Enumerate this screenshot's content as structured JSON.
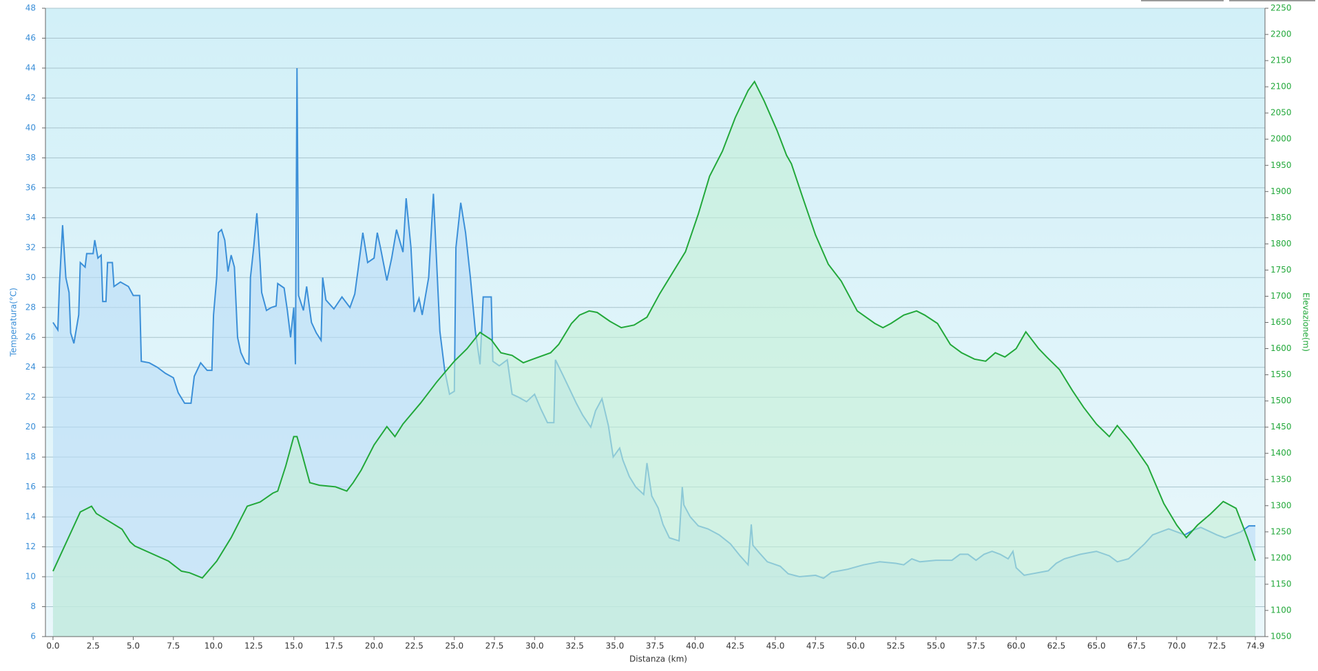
{
  "chart_data": {
    "type": "line",
    "xlabel": "Distanza  (km)",
    "ylabel": "Temperatura(°C)",
    "y2label": "Elevazione(m)",
    "xlim": [
      -0.47,
      75.5
    ],
    "ylim": [
      6,
      48
    ],
    "y2lim": [
      1050,
      2250
    ],
    "grid": true,
    "xticks": [
      {
        "value": 0,
        "label": "0.0"
      },
      2.5,
      {
        "value": 5,
        "label": "5.0"
      },
      7.5,
      {
        "value": 10,
        "label": "10.0"
      },
      12.5,
      {
        "value": 15,
        "label": "15.0"
      },
      17.5,
      {
        "value": 20,
        "label": "20.0"
      },
      22.5,
      {
        "value": 25,
        "label": "25.0"
      },
      27.5,
      {
        "value": 30,
        "label": "30.0"
      },
      32.5,
      {
        "value": 35,
        "label": "35.0"
      },
      37.5,
      {
        "value": 40,
        "label": "40.0"
      },
      42.5,
      {
        "value": 45,
        "label": "45.0"
      },
      47.5,
      {
        "value": 50,
        "label": "50.0"
      },
      52.5,
      {
        "value": 55,
        "label": "55.0"
      },
      57.5,
      {
        "value": 60,
        "label": "60.0"
      },
      62.5,
      {
        "value": 65,
        "label": "65.0"
      },
      67.5,
      {
        "value": 70,
        "label": "70.0"
      },
      72.5,
      74.9
    ],
    "yticks": [
      6,
      8,
      10,
      12,
      14,
      16,
      18,
      20,
      22,
      24,
      26,
      28,
      30,
      32,
      34,
      36,
      38,
      40,
      42,
      44,
      46,
      48
    ],
    "y2ticks": [
      1050,
      1100,
      1150,
      1200,
      1250,
      1300,
      1350,
      1400,
      1450,
      1500,
      1550,
      1600,
      1650,
      1700,
      1750,
      1800,
      1850,
      1900,
      1950,
      2000,
      2050,
      2100,
      2150,
      2200,
      2250
    ],
    "series": [
      {
        "name": "Temperatura",
        "color": "#3b8fd8",
        "fill": "#b9dcf6",
        "x": [
          0,
          0.3,
          0.4,
          0.6,
          0.8,
          1,
          1.1,
          1.3,
          1.6,
          1.7,
          2.0,
          2.1,
          2.5,
          2.6,
          2.8,
          3.0,
          3.1,
          3.3,
          3.4,
          3.7,
          3.8,
          4.2,
          4.7,
          5.0,
          5.4,
          5.5,
          6.0,
          6.5,
          7.0,
          7.5,
          7.8,
          8.2,
          8.6,
          8.8,
          9.2,
          9.6,
          9.9,
          10.0,
          10.2,
          10.3,
          10.5,
          10.7,
          10.9,
          11.1,
          11.3,
          11.5,
          11.7,
          12.0,
          12.2,
          12.3,
          12.5,
          12.7,
          12.9,
          13.0,
          13.3,
          13.6,
          13.9,
          14.0,
          14.4,
          14.6,
          14.8,
          15.0,
          15.1,
          15.2,
          15.3,
          15.6,
          15.8,
          16.1,
          16.4,
          16.7,
          16.8,
          17.0,
          17.5,
          18.0,
          18.5,
          18.8,
          19.0,
          19.3,
          19.6,
          20.0,
          20.2,
          20.4,
          20.8,
          21.1,
          21.4,
          21.8,
          22.0,
          22.3,
          22.5,
          22.8,
          23.0,
          23.4,
          23.7,
          23.9,
          24.1,
          24.4,
          24.7,
          25.0,
          25.1,
          25.4,
          25.7,
          26.0,
          26.3,
          26.6,
          26.8,
          27.3,
          27.4,
          27.8,
          28.3,
          28.6,
          29.0,
          29.5,
          30.0,
          30.4,
          30.8,
          31.2,
          31.3,
          31.8,
          32.2,
          32.6,
          33.0,
          33.5,
          33.8,
          34.2,
          34.6,
          34.9,
          35.3,
          35.5,
          35.9,
          36.3,
          36.8,
          37.0,
          37.3,
          37.7,
          38.0,
          38.4,
          39.0,
          39.2,
          39.3,
          39.7,
          40.2,
          40.8,
          41.5,
          42.2,
          42.8,
          43.3,
          43.5,
          43.6,
          44.0,
          44.5,
          45.3,
          45.8,
          46.5,
          47.5,
          48.0,
          48.5,
          49.5,
          50.5,
          51.5,
          52.5,
          53.0,
          53.5,
          54.0,
          55.0,
          56.0,
          56.5,
          57.0,
          57.5,
          58.0,
          58.5,
          59.0,
          59.5,
          59.8,
          60.0,
          60.5,
          61.0,
          62.0,
          62.5,
          63.0,
          64.0,
          65.0,
          65.8,
          66.3,
          67.0,
          67.5,
          68.0,
          68.5,
          69.5,
          70.5,
          71.0,
          71.5,
          72.5,
          73.0,
          74.0,
          74.5,
          74.9
        ],
        "values": [
          27,
          26.5,
          29.5,
          33.5,
          30,
          29,
          26.3,
          25.6,
          27.5,
          31,
          30.7,
          31.6,
          31.6,
          32.5,
          31.3,
          31.5,
          28.4,
          28.4,
          31,
          31,
          29.4,
          29.7,
          29.4,
          28.8,
          28.8,
          24.4,
          24.3,
          24,
          23.6,
          23.3,
          22.3,
          21.6,
          21.6,
          23.4,
          24.3,
          23.8,
          23.8,
          27.5,
          30,
          33,
          33.2,
          32.5,
          30.4,
          31.5,
          30.7,
          26,
          25,
          24.3,
          24.2,
          30,
          32,
          34.3,
          31,
          29,
          27.8,
          28,
          28.1,
          29.6,
          29.3,
          27.8,
          26,
          28,
          24.2,
          44,
          28.8,
          27.8,
          29.4,
          27,
          26.3,
          25.8,
          30,
          28.5,
          27.9,
          28.7,
          28,
          28.9,
          30.5,
          33,
          31,
          31.3,
          33,
          32,
          29.8,
          31.3,
          33.2,
          31.7,
          35.3,
          32,
          27.7,
          28.6,
          27.5,
          30,
          35.6,
          31,
          26.4,
          23.8,
          22.2,
          22.4,
          32,
          35,
          33,
          30,
          26.5,
          24.2,
          28.7,
          28.7,
          24.4,
          24.1,
          24.5,
          22.2,
          22,
          21.7,
          22.2,
          21.2,
          20.3,
          20.3,
          24.5,
          23.4,
          22.5,
          21.6,
          20.8,
          20,
          21.1,
          21.9,
          20.1,
          18,
          18.6,
          17.8,
          16.7,
          16,
          15.5,
          17.6,
          15.4,
          14.6,
          13.5,
          12.6,
          12.4,
          16,
          14.8,
          14,
          13.4,
          13.2,
          12.8,
          12.2,
          11.4,
          10.8,
          13.5,
          12.1,
          11.6,
          11,
          10.7,
          10.2,
          10,
          10.1,
          9.9,
          10.3,
          10.5,
          10.8,
          11,
          10.9,
          10.8,
          11.2,
          11,
          11.1,
          11.1,
          11.5,
          11.5,
          11.1,
          11.5,
          11.7,
          11.5,
          11.2,
          11.7,
          10.6,
          10.1,
          10.2,
          10.4,
          10.9,
          11.2,
          11.5,
          11.7,
          11.4,
          11,
          11.2,
          11.7,
          12.2,
          12.8,
          13.2,
          12.8,
          13.1,
          13.3,
          12.8,
          12.6,
          13,
          13.4,
          13.4
        ]
      },
      {
        "name": "Elevazione",
        "color": "#22a83a",
        "fill": "#c4f0d6",
        "axis": "y2",
        "x": [
          0,
          1.7,
          2.4,
          2.7,
          4.3,
          4.8,
          5.1,
          7.2,
          8.0,
          8.5,
          9.3,
          10.2,
          11.1,
          12.1,
          12.9,
          13.7,
          14.0,
          14.5,
          15.0,
          15.2,
          15.5,
          16.0,
          16.6,
          17.6,
          18.3,
          18.7,
          19.2,
          20.0,
          20.8,
          21.3,
          21.8,
          22.9,
          23.9,
          25.0,
          25.8,
          26.6,
          27.3,
          27.9,
          28.6,
          29.3,
          29.9,
          31.0,
          31.5,
          32.3,
          32.8,
          33.4,
          33.9,
          34.7,
          35.4,
          36.2,
          37.0,
          37.8,
          38.6,
          39.4,
          40.2,
          40.9,
          41.7,
          42.5,
          43.3,
          43.7,
          44.3,
          45.1,
          45.7,
          46.0,
          46.7,
          47.5,
          48.3,
          49.1,
          50.1,
          51.2,
          51.7,
          52.2,
          53.0,
          53.8,
          54.3,
          55.1,
          55.9,
          56.6,
          57.4,
          58.1,
          58.7,
          59.3,
          60.0,
          60.6,
          61.4,
          61.9,
          62.7,
          63.5,
          64.2,
          65.0,
          65.8,
          66.3,
          67.1,
          68.2,
          69.2,
          70.0,
          70.6,
          71.3,
          72.1,
          72.9,
          73.7,
          74.4,
          74.9
        ],
        "values": [
          1175,
          1288,
          1299,
          1285,
          1255,
          1231,
          1223,
          1194,
          1175,
          1172,
          1162,
          1194,
          1239,
          1299,
          1307,
          1324,
          1328,
          1376,
          1432,
          1432,
          1400,
          1344,
          1339,
          1336,
          1328,
          1344,
          1368,
          1416,
          1451,
          1432,
          1456,
          1496,
          1536,
          1576,
          1600,
          1631,
          1617,
          1592,
          1587,
          1573,
          1580,
          1592,
          1608,
          1648,
          1664,
          1672,
          1669,
          1652,
          1640,
          1645,
          1660,
          1705,
          1745,
          1785,
          1857,
          1929,
          1977,
          2041,
          2093,
          2110,
          2073,
          2017,
          1969,
          1953,
          1889,
          1817,
          1761,
          1729,
          1672,
          1648,
          1640,
          1648,
          1664,
          1672,
          1664,
          1648,
          1608,
          1592,
          1580,
          1576,
          1592,
          1584,
          1600,
          1632,
          1600,
          1584,
          1560,
          1520,
          1488,
          1456,
          1432,
          1453,
          1424,
          1376,
          1304,
          1263,
          1239,
          1263,
          1284,
          1308,
          1295,
          1239,
          1195
        ]
      }
    ]
  }
}
